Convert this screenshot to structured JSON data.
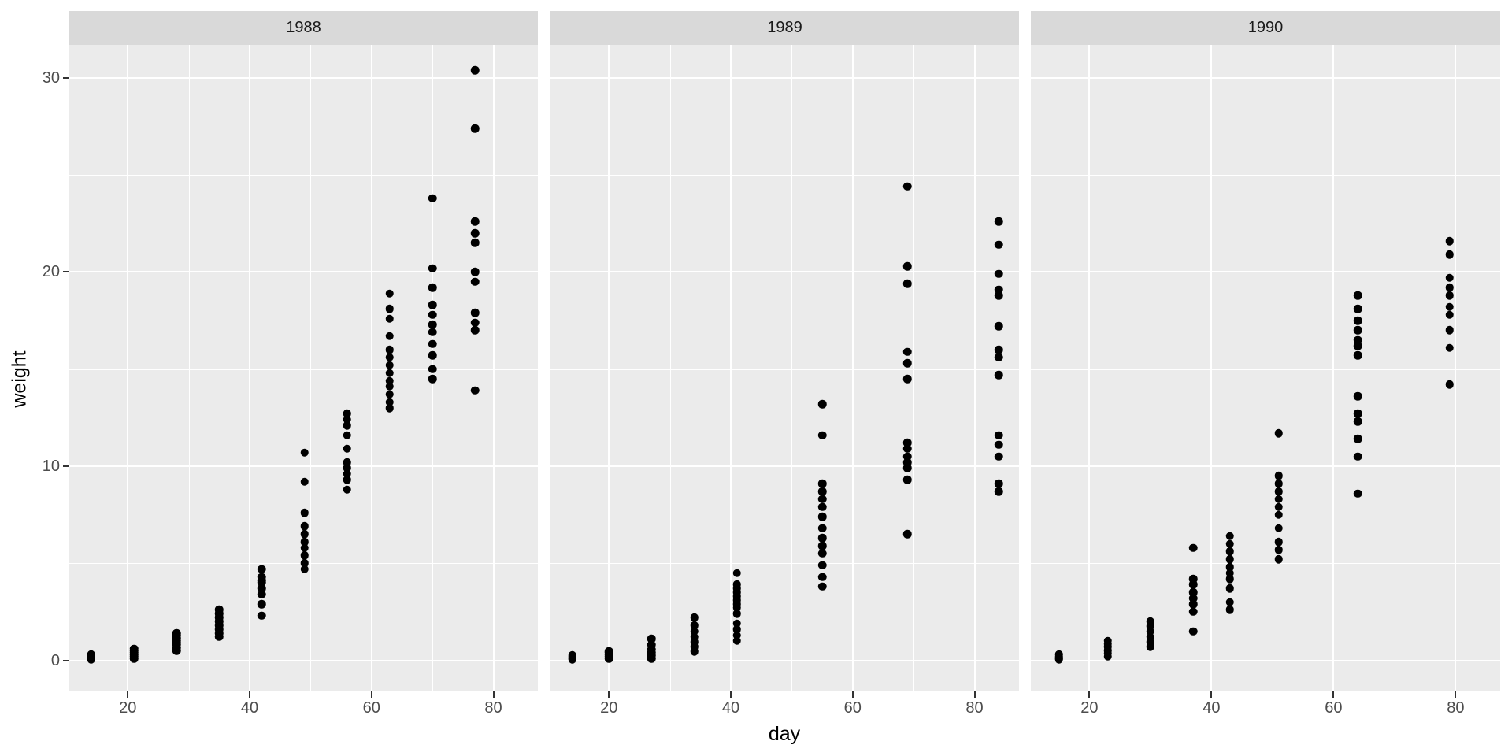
{
  "colors": {
    "page_bg": "#FFFFFF",
    "panel_bg": "#EBEBEB",
    "strip_bg": "#D9D9D9",
    "gridline": "#FFFFFF",
    "point": "#000000",
    "tick_text": "#4D4D4D",
    "axis_title_text": "#000000",
    "strip_text": "#1A1A1A",
    "tick_mark": "#333333"
  },
  "chart_data": {
    "type": "scatter",
    "title": "",
    "xlabel": "day",
    "ylabel": "weight",
    "facet_variable": "year",
    "legend_position": "none",
    "grid": "on",
    "point_color": "#000000",
    "x_ticks": [
      20,
      40,
      60,
      80
    ],
    "x_minor_ticks": [
      10,
      30,
      50,
      70
    ],
    "y_ticks": [
      0,
      10,
      20,
      30
    ],
    "y_minor_ticks": [
      5,
      15,
      25
    ],
    "x_range": [
      10.4,
      87.3
    ],
    "y_range": [
      -1.6,
      31.7
    ],
    "facets": [
      {
        "label": "1988",
        "columns": [
          {
            "day": 14,
            "weights": [
              0.05,
              0.1,
              0.15,
              0.2,
              0.25,
              0.3
            ]
          },
          {
            "day": 21,
            "weights": [
              0.1,
              0.2,
              0.3,
              0.4,
              0.5,
              0.6
            ]
          },
          {
            "day": 28,
            "weights": [
              0.5,
              0.65,
              0.8,
              0.9,
              1.0,
              1.15,
              1.3,
              1.4
            ]
          },
          {
            "day": 35,
            "weights": [
              1.2,
              1.4,
              1.6,
              1.8,
              2.0,
              2.2,
              2.4,
              2.6
            ]
          },
          {
            "day": 42,
            "weights": [
              2.3,
              2.9,
              3.4,
              3.7,
              4.0,
              4.1,
              4.3,
              4.7
            ]
          },
          {
            "day": 49,
            "weights": [
              4.7,
              5.0,
              5.4,
              5.8,
              6.1,
              6.5,
              6.9,
              7.6,
              9.2,
              10.7
            ]
          },
          {
            "day": 56,
            "weights": [
              8.8,
              9.3,
              9.6,
              9.9,
              10.2,
              10.9,
              11.6,
              12.1,
              12.4,
              12.7
            ]
          },
          {
            "day": 63,
            "weights": [
              13.0,
              13.3,
              13.7,
              14.1,
              14.4,
              14.8,
              15.2,
              15.6,
              16.0,
              16.7,
              17.6,
              18.1,
              18.9
            ]
          },
          {
            "day": 70,
            "weights": [
              14.5,
              15.0,
              15.7,
              16.3,
              16.9,
              17.3,
              17.8,
              18.3,
              19.2,
              20.2,
              23.8
            ]
          },
          {
            "day": 77,
            "weights": [
              13.9,
              17.0,
              17.4,
              17.9,
              19.5,
              20.0,
              21.5,
              22.0,
              22.6,
              27.4,
              30.4
            ]
          }
        ]
      },
      {
        "label": "1989",
        "columns": [
          {
            "day": 14,
            "weights": [
              0.05,
              0.1,
              0.15,
              0.2,
              0.25
            ]
          },
          {
            "day": 20,
            "weights": [
              0.1,
              0.2,
              0.3,
              0.4,
              0.45
            ]
          },
          {
            "day": 27,
            "weights": [
              0.1,
              0.25,
              0.4,
              0.55,
              0.8,
              1.1
            ]
          },
          {
            "day": 34,
            "weights": [
              0.45,
              0.7,
              0.95,
              1.2,
              1.5,
              1.8,
              2.2
            ]
          },
          {
            "day": 41,
            "weights": [
              1.0,
              1.3,
              1.6,
              1.9,
              2.4,
              2.7,
              2.9,
              3.1,
              3.3,
              3.5,
              3.7,
              3.9,
              4.5
            ]
          },
          {
            "day": 55,
            "weights": [
              3.8,
              4.3,
              4.9,
              5.5,
              5.9,
              6.3,
              6.8,
              7.4,
              7.9,
              8.3,
              8.7,
              9.1,
              11.6,
              13.2
            ]
          },
          {
            "day": 69,
            "weights": [
              6.5,
              9.3,
              9.9,
              10.2,
              10.5,
              10.9,
              11.2,
              14.5,
              15.3,
              15.9,
              19.4,
              20.3,
              24.4
            ]
          },
          {
            "day": 84,
            "weights": [
              8.7,
              9.1,
              10.5,
              11.1,
              11.6,
              14.7,
              15.6,
              16.0,
              17.2,
              18.8,
              19.1,
              19.9,
              21.4,
              22.6
            ]
          }
        ]
      },
      {
        "label": "1990",
        "columns": [
          {
            "day": 15,
            "weights": [
              0.05,
              0.1,
              0.15,
              0.2,
              0.3
            ]
          },
          {
            "day": 23,
            "weights": [
              0.2,
              0.35,
              0.5,
              0.7,
              0.85,
              1.0
            ]
          },
          {
            "day": 30,
            "weights": [
              0.7,
              0.95,
              1.2,
              1.5,
              1.75,
              2.0
            ]
          },
          {
            "day": 37,
            "weights": [
              1.5,
              2.5,
              2.9,
              3.2,
              3.5,
              3.9,
              4.2,
              5.8
            ]
          },
          {
            "day": 43,
            "weights": [
              2.6,
              3.0,
              3.7,
              4.2,
              4.5,
              4.8,
              5.2,
              5.6,
              6.0,
              6.4
            ]
          },
          {
            "day": 51,
            "weights": [
              5.2,
              5.7,
              6.1,
              6.8,
              7.5,
              7.9,
              8.3,
              8.7,
              9.1,
              9.5,
              11.7
            ]
          },
          {
            "day": 64,
            "weights": [
              8.6,
              10.5,
              11.4,
              12.3,
              12.7,
              13.6,
              15.7,
              16.2,
              16.5,
              17.0,
              17.5,
              18.1,
              18.8
            ]
          },
          {
            "day": 79,
            "weights": [
              14.2,
              16.1,
              17.0,
              17.8,
              18.2,
              18.8,
              19.2,
              19.7,
              20.9,
              21.6
            ]
          }
        ]
      }
    ]
  }
}
